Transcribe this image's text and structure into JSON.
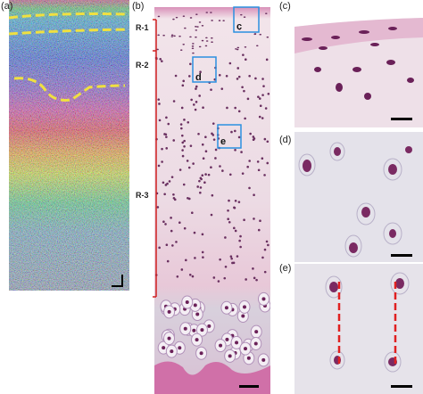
{
  "panels": [
    {
      "label": "(a)"
    },
    {
      "label": "(b)",
      "regions": [
        "R-1",
        "R-2",
        "R-3"
      ],
      "boxes": [
        "c",
        "d",
        "e"
      ]
    },
    {
      "label": "(c)"
    },
    {
      "label": "(d)"
    },
    {
      "label": "(e)"
    }
  ]
}
